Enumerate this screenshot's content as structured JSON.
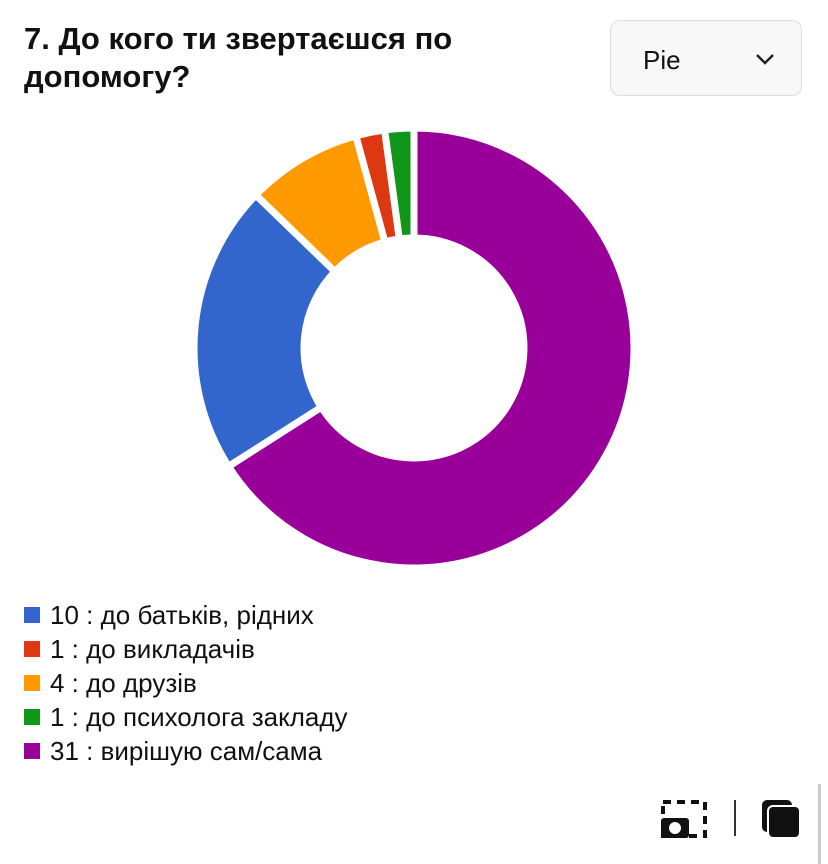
{
  "chart_data": {
    "type": "pie",
    "title": "7. До кого ти звертаєшся по допомогу?",
    "selector": "Pie",
    "categories": [
      "10 : до батьків, рідних",
      "1 : до викладачів",
      "4 : до друзів",
      "1 : до психолога закладу",
      "31 : вирішую сам/сама"
    ],
    "values": [
      10,
      1,
      4,
      1,
      31
    ],
    "colors": [
      "#3366cc",
      "#dc3912",
      "#ff9900",
      "#109618",
      "#990099"
    ],
    "donut": true
  }
}
